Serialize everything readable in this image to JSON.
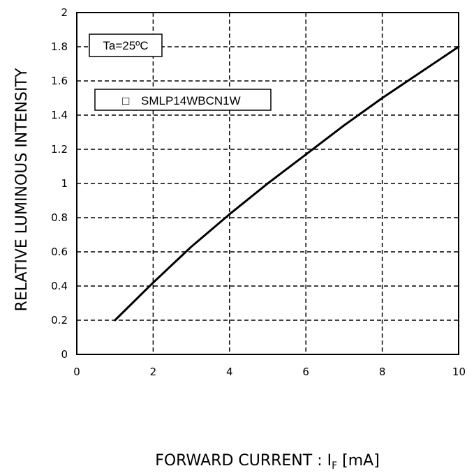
{
  "chart_data": {
    "type": "line",
    "xlabel": "FORWARD CURRENT : I",
    "xlabel_sub": "F",
    "xlabel_unit": " [mA]",
    "ylabel": "RELATIVE LUMINOUS INTENSITY",
    "xlim": [
      0,
      10
    ],
    "ylim": [
      0,
      2
    ],
    "x_ticks": [
      "0",
      "2",
      "4",
      "6",
      "8",
      "10"
    ],
    "y_ticks": [
      "0",
      "0.2",
      "0.4",
      "0.6",
      "0.8",
      "1",
      "1.2",
      "1.4",
      "1.6",
      "1.8",
      "2"
    ],
    "grid": true,
    "condition": "Ta=25ºC",
    "legend_marker": "□",
    "legend": "SMLP14WBCN1W",
    "series": [
      {
        "name": "SMLP14WBCN1W",
        "x": [
          1,
          2,
          3,
          4,
          5,
          6,
          7,
          8,
          9,
          10
        ],
        "y": [
          0.2,
          0.42,
          0.63,
          0.82,
          1.0,
          1.17,
          1.34,
          1.5,
          1.65,
          1.8
        ]
      }
    ]
  }
}
